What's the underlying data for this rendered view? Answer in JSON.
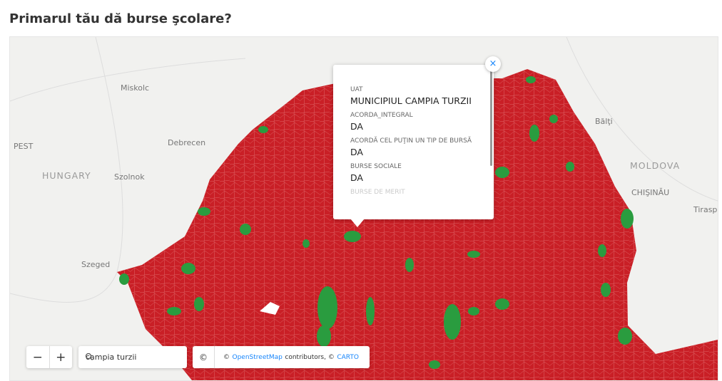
{
  "header": {
    "title": "Primarul tău dă burse şcolare?"
  },
  "map": {
    "labels": [
      "Miskolc",
      "Debrecen",
      "PEST",
      "HUNGARY",
      "Szolnok",
      "Szeged",
      "Bălţi",
      "MOLDOVA",
      "CHIŞINĂU",
      "Tiraspo"
    ]
  },
  "popup": {
    "close": "×",
    "fields": [
      {
        "label": "UAT",
        "value": "MUNICIPIUL CAMPIA TURZII"
      },
      {
        "label": "ACORDA_INTEGRAL",
        "value": "DA"
      },
      {
        "label": "ACORDĂ CEL PUŢIN UN TIP DE BURSĂ",
        "value": "DA"
      },
      {
        "label": "BURSE SOCIALE",
        "value": "DA"
      },
      {
        "label": "BURSE DE MERIT",
        "value": ""
      }
    ]
  },
  "controls": {
    "zoom_out": "−",
    "zoom_in": "+",
    "search": "campia turzii",
    "info": "©",
    "attribution": {
      "prefix": "©",
      "osm": "OpenStreetMap",
      "middle": "contributors, ©",
      "carto": "CARTO"
    }
  }
}
